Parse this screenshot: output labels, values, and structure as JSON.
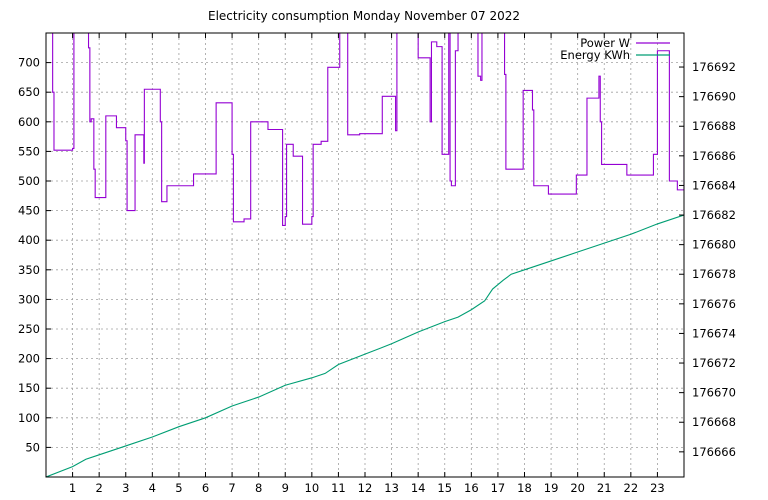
{
  "chart_data": {
    "type": "line",
    "title": "Electricity consumption Monday November 07 2022",
    "xlim": [
      0,
      24
    ],
    "ylim": [
      0,
      750
    ],
    "y2lim": [
      176664.3,
      176694.3
    ],
    "x_ticks": [
      1,
      2,
      3,
      4,
      5,
      6,
      7,
      8,
      9,
      10,
      11,
      12,
      13,
      14,
      15,
      16,
      17,
      18,
      19,
      20,
      21,
      22,
      23
    ],
    "y_ticks": [
      50,
      100,
      150,
      200,
      250,
      300,
      350,
      400,
      450,
      500,
      550,
      600,
      650,
      700
    ],
    "y2_ticks": [
      176666,
      176668,
      176670,
      176672,
      176674,
      176676,
      176678,
      176680,
      176682,
      176684,
      176686,
      176688,
      176690,
      176692
    ],
    "grid": true,
    "legend_position": "top-right",
    "series": [
      {
        "name": "Power W",
        "axis": "left",
        "color": "#9400d3",
        "step": true,
        "points": [
          [
            0.0,
            750
          ],
          [
            0.25,
            650
          ],
          [
            0.3,
            552
          ],
          [
            1.0,
            555
          ],
          [
            1.05,
            750
          ],
          [
            1.6,
            725
          ],
          [
            1.65,
            600
          ],
          [
            1.7,
            605
          ],
          [
            1.8,
            520
          ],
          [
            1.85,
            472
          ],
          [
            2.2,
            472
          ],
          [
            2.25,
            610
          ],
          [
            2.6,
            610
          ],
          [
            2.65,
            590
          ],
          [
            2.95,
            590
          ],
          [
            3.0,
            568
          ],
          [
            3.05,
            450
          ],
          [
            3.3,
            450
          ],
          [
            3.35,
            578
          ],
          [
            3.65,
            578
          ],
          [
            3.68,
            530
          ],
          [
            3.7,
            655
          ],
          [
            4.25,
            655
          ],
          [
            4.3,
            600
          ],
          [
            4.35,
            465
          ],
          [
            4.5,
            465
          ],
          [
            4.55,
            492
          ],
          [
            5.5,
            492
          ],
          [
            5.55,
            512
          ],
          [
            6.35,
            512
          ],
          [
            6.4,
            632
          ],
          [
            6.95,
            632
          ],
          [
            7.0,
            545
          ],
          [
            7.05,
            431
          ],
          [
            7.4,
            431
          ],
          [
            7.45,
            436
          ],
          [
            7.65,
            436
          ],
          [
            7.7,
            600
          ],
          [
            8.3,
            600
          ],
          [
            8.35,
            587
          ],
          [
            8.85,
            587
          ],
          [
            8.9,
            425
          ],
          [
            9.0,
            440
          ],
          [
            9.05,
            562
          ],
          [
            9.25,
            562
          ],
          [
            9.3,
            542
          ],
          [
            9.6,
            542
          ],
          [
            9.65,
            427
          ],
          [
            9.95,
            427
          ],
          [
            10.0,
            440
          ],
          [
            10.05,
            562
          ],
          [
            10.3,
            562
          ],
          [
            10.35,
            567
          ],
          [
            10.55,
            567
          ],
          [
            10.6,
            692
          ],
          [
            11.0,
            692
          ],
          [
            11.05,
            750
          ],
          [
            11.3,
            750
          ],
          [
            11.35,
            578
          ],
          [
            11.75,
            578
          ],
          [
            11.8,
            580
          ],
          [
            12.6,
            580
          ],
          [
            12.65,
            643
          ],
          [
            13.1,
            643
          ],
          [
            13.15,
            585
          ],
          [
            13.2,
            750
          ],
          [
            13.95,
            750
          ],
          [
            14.0,
            708
          ],
          [
            14.4,
            708
          ],
          [
            14.45,
            600
          ],
          [
            14.5,
            735
          ],
          [
            14.65,
            735
          ],
          [
            14.7,
            727
          ],
          [
            14.85,
            727
          ],
          [
            14.9,
            545
          ],
          [
            15.1,
            545
          ],
          [
            15.15,
            750
          ],
          [
            15.2,
            500
          ],
          [
            15.25,
            492
          ],
          [
            15.35,
            492
          ],
          [
            15.4,
            720
          ],
          [
            15.5,
            750
          ],
          [
            16.2,
            750
          ],
          [
            16.25,
            677
          ],
          [
            16.35,
            670
          ],
          [
            16.4,
            750
          ],
          [
            17.2,
            750
          ],
          [
            17.25,
            680
          ],
          [
            17.3,
            520
          ],
          [
            17.9,
            520
          ],
          [
            17.95,
            653
          ],
          [
            18.25,
            653
          ],
          [
            18.3,
            620
          ],
          [
            18.35,
            492
          ],
          [
            18.85,
            492
          ],
          [
            18.9,
            478
          ],
          [
            19.9,
            478
          ],
          [
            19.95,
            510
          ],
          [
            20.3,
            510
          ],
          [
            20.35,
            640
          ],
          [
            20.75,
            640
          ],
          [
            20.8,
            677
          ],
          [
            20.85,
            600
          ],
          [
            20.9,
            528
          ],
          [
            21.8,
            528
          ],
          [
            21.85,
            510
          ],
          [
            22.8,
            510
          ],
          [
            22.85,
            545
          ],
          [
            22.95,
            545
          ],
          [
            23.0,
            720
          ],
          [
            23.4,
            720
          ],
          [
            23.45,
            500
          ],
          [
            23.7,
            500
          ],
          [
            23.75,
            485
          ],
          [
            24.0,
            485
          ],
          [
            24.0,
            590
          ]
        ]
      },
      {
        "name": "Energy KWh",
        "axis": "right",
        "color": "#009e73",
        "step": false,
        "points": [
          [
            0,
            176664.3
          ],
          [
            1,
            176665.0
          ],
          [
            1.5,
            176665.5
          ],
          [
            2,
            176665.8
          ],
          [
            3,
            176666.4
          ],
          [
            4,
            176667.0
          ],
          [
            5,
            176667.7
          ],
          [
            6,
            176668.3
          ],
          [
            7,
            176669.1
          ],
          [
            8,
            176669.7
          ],
          [
            9,
            176670.5
          ],
          [
            10,
            176671.0
          ],
          [
            10.5,
            176671.3
          ],
          [
            11,
            176671.9
          ],
          [
            12,
            176672.6
          ],
          [
            13,
            176673.3
          ],
          [
            14,
            176674.1
          ],
          [
            15,
            176674.8
          ],
          [
            15.5,
            176675.1
          ],
          [
            16,
            176675.6
          ],
          [
            16.5,
            176676.2
          ],
          [
            16.8,
            176677.0
          ],
          [
            17.2,
            176677.6
          ],
          [
            17.5,
            176678.0
          ],
          [
            18,
            176678.3
          ],
          [
            19,
            176678.9
          ],
          [
            20,
            176679.5
          ],
          [
            21,
            176680.1
          ],
          [
            22,
            176680.7
          ],
          [
            23,
            176681.4
          ],
          [
            24,
            176682.0
          ]
        ]
      }
    ]
  }
}
